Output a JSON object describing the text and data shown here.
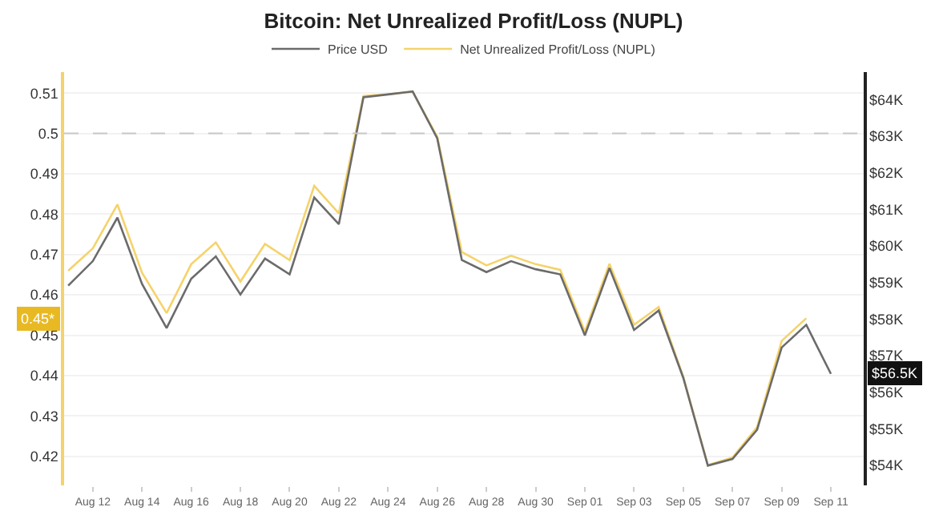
{
  "chart_data": {
    "type": "line",
    "title": "Bitcoin: Net Unrealized Profit/Loss (NUPL)",
    "x": [
      "--08-11",
      "--08-12",
      "--08-13",
      "--08-14",
      "--08-15",
      "--08-16",
      "--08-17",
      "--08-18",
      "--08-19",
      "--08-20",
      "--08-21",
      "--08-22",
      "--08-23",
      "--08-24",
      "--08-25",
      "--08-26",
      "--08-27",
      "--08-28",
      "--08-29",
      "--08-30",
      "--08-31",
      "--09-01",
      "--09-02",
      "--09-03",
      "--09-04",
      "--09-05",
      "--09-06",
      "--09-07",
      "--09-08",
      "--09-09",
      "--09-10",
      "--09-11"
    ],
    "series": [
      {
        "name": "Price USD",
        "color": "#6b6b6b",
        "axis": "y2",
        "values": [
          58.91,
          59.58,
          60.77,
          58.96,
          57.75,
          59.1,
          59.71,
          58.67,
          59.65,
          59.22,
          61.32,
          60.59,
          64.06,
          64.14,
          64.22,
          62.94,
          59.61,
          59.28,
          59.58,
          59.36,
          59.22,
          57.55,
          59.39,
          57.7,
          58.23,
          56.39,
          53.99,
          54.17,
          54.97,
          57.22,
          57.84,
          56.5
        ]
      },
      {
        "name": "Net Unrealized Profit/Loss (NUPL)",
        "color": "#f5d36b",
        "values": [
          0.466,
          0.4715,
          0.4824,
          0.4655,
          0.4555,
          0.4676,
          0.473,
          0.4633,
          0.4726,
          0.4686,
          0.487,
          0.4802,
          0.5093,
          0.5097,
          0.5103,
          0.4992,
          0.4706,
          0.4673,
          0.4697,
          0.4676,
          0.4662,
          0.4509,
          0.4677,
          0.4526,
          0.457,
          0.4397,
          0.4178,
          0.4197,
          0.4272,
          0.4486,
          0.4542,
          null
        ]
      }
    ],
    "annotations": [
      "$56.5K",
      "0.45*"
    ],
    "xlim": [
      "--08-10T20:00",
      "--09-12T08:00"
    ],
    "xticks": [
      {
        "value": "--08-12",
        "label": "Aug 12"
      },
      {
        "value": "--08-14",
        "label": "Aug 14"
      },
      {
        "value": "--08-16",
        "label": "Aug 16"
      },
      {
        "value": "--08-18",
        "label": "Aug 18"
      },
      {
        "value": "--08-20",
        "label": "Aug 20"
      },
      {
        "value": "--08-22",
        "label": "Aug 22"
      },
      {
        "value": "--08-24",
        "label": "Aug 24"
      },
      {
        "value": "--08-26",
        "label": "Aug 26"
      },
      {
        "value": "--08-28",
        "label": "Aug 28"
      },
      {
        "value": "--08-30",
        "label": "Aug 30"
      },
      {
        "value": "--09-01",
        "label": "Sep 01"
      },
      {
        "value": "--09-03",
        "label": "Sep 03"
      },
      {
        "value": "--09-05",
        "label": "Sep 05"
      },
      {
        "value": "--09-07",
        "label": "Sep 07"
      },
      {
        "value": "--09-09",
        "label": "Sep 09"
      },
      {
        "value": "--09-11",
        "label": "Sep 11"
      }
    ],
    "ylim": [
      0.4128,
      0.5152
    ],
    "yticks": [
      0.42,
      0.43,
      0.44,
      0.45,
      0.46,
      0.47,
      0.48,
      0.49,
      0.5,
      0.51
    ],
    "y2lim": [
      53.45,
      64.75
    ],
    "y2ticks": [
      {
        "value": 54,
        "label": "$54K"
      },
      {
        "value": 55,
        "label": "$55K"
      },
      {
        "value": 56,
        "label": "$56K"
      },
      {
        "value": 57,
        "label": "$57K"
      },
      {
        "value": 58,
        "label": "$58K"
      },
      {
        "value": 59,
        "label": "$59K"
      },
      {
        "value": 60,
        "label": "$60K"
      },
      {
        "value": 61,
        "label": "$61K"
      },
      {
        "value": 62,
        "label": "$62K"
      },
      {
        "value": 63,
        "label": "$63K"
      },
      {
        "value": 64,
        "label": "$64K"
      }
    ],
    "ref_lines": [
      {
        "axis": "y",
        "value": 0.5,
        "color": "#c8c8c8",
        "line_style": "dashed"
      }
    ],
    "grid": "y",
    "legend": "top",
    "marker": "none",
    "line_style": "solid"
  }
}
